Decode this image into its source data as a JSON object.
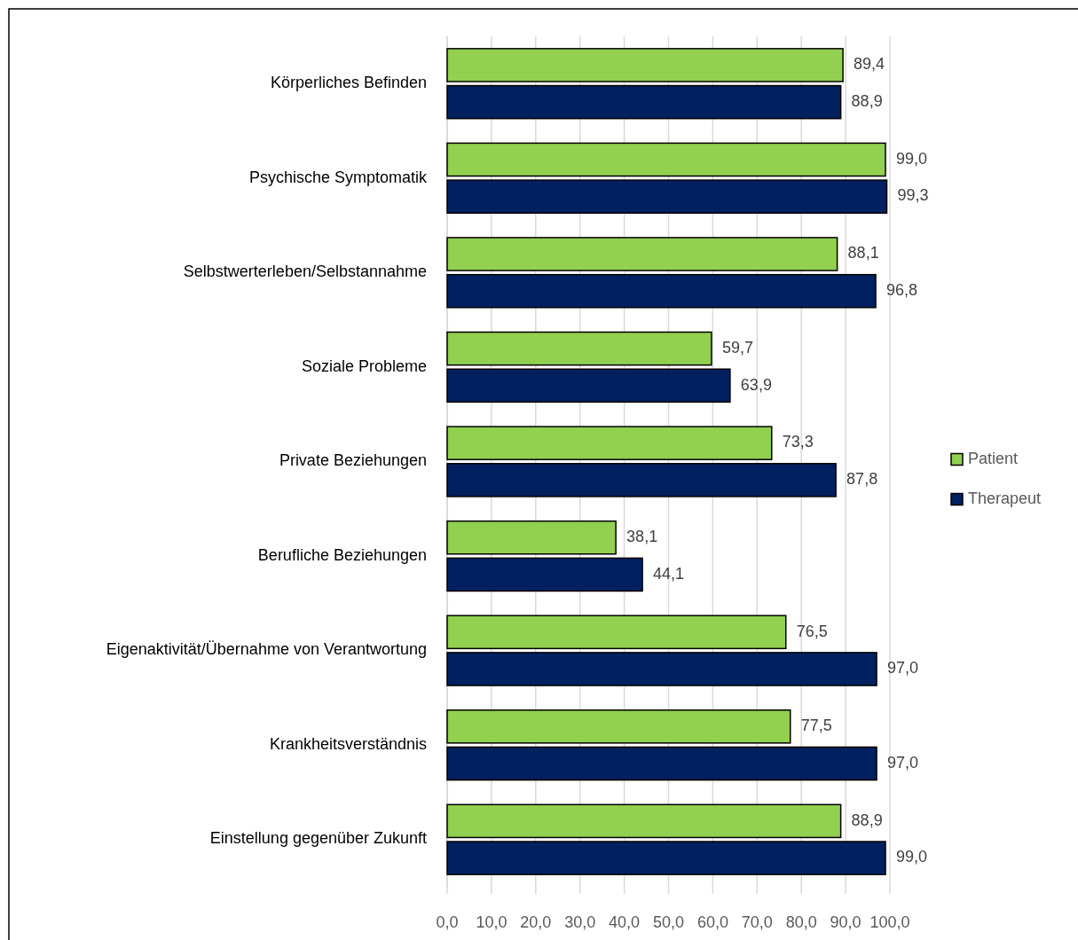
{
  "chart_data": {
    "type": "bar",
    "orientation": "horizontal",
    "categories": [
      "Körperliches Befinden",
      "Psychische Symptomatik",
      "Selbstwerterleben/Selbstannahme",
      "Soziale Probleme",
      "Private Beziehungen",
      "Berufliche Beziehungen",
      "Eigenaktivität/Übernahme von Verantwortung",
      "Krankheitsverständnis",
      "Einstellung gegenüber Zukunft"
    ],
    "series": [
      {
        "name": "Patient",
        "color": "#92d050",
        "values": [
          89.4,
          99.0,
          88.1,
          59.7,
          73.3,
          38.1,
          76.5,
          77.5,
          88.9
        ],
        "value_labels": [
          "89,4",
          "99,0",
          "88,1",
          "59,7",
          "73,3",
          "38,1",
          "76,5",
          "77,5",
          "88,9"
        ]
      },
      {
        "name": "Therapeut",
        "color": "#002060",
        "values": [
          88.9,
          99.3,
          96.8,
          63.9,
          87.8,
          44.1,
          97.0,
          97.0,
          99.0
        ],
        "value_labels": [
          "88,9",
          "99,3",
          "96,8",
          "63,9",
          "87,8",
          "44,1",
          "97,0",
          "97,0",
          "99,0"
        ]
      }
    ],
    "xlim": [
      0,
      100
    ],
    "xticks": [
      {
        "value": 0,
        "label": "0,0"
      },
      {
        "value": 10,
        "label": "10,0"
      },
      {
        "value": 20,
        "label": "20,0"
      },
      {
        "value": 30,
        "label": "30,0"
      },
      {
        "value": 40,
        "label": "40,0"
      },
      {
        "value": 50,
        "label": "50,0"
      },
      {
        "value": 60,
        "label": "60,0"
      },
      {
        "value": 70,
        "label": "70,0"
      },
      {
        "value": 80,
        "label": "80,0"
      },
      {
        "value": 90,
        "label": "90,0"
      },
      {
        "value": 100,
        "label": "100,0"
      }
    ],
    "grid": "x",
    "legend": "right"
  }
}
